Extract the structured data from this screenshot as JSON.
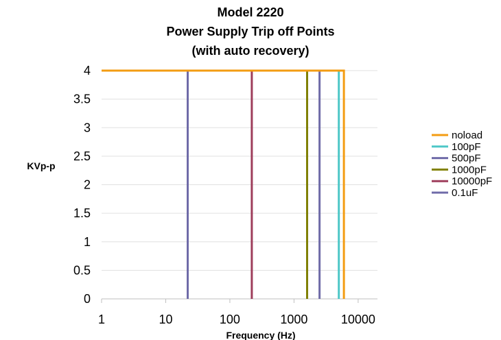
{
  "chart_data": {
    "type": "line",
    "title": [
      "Model 2220",
      "Power Supply Trip off Points",
      "(with auto recovery)"
    ],
    "xlabel": "Frequency (Hz)",
    "ylabel": "KVp-p",
    "x_scale": "log",
    "xlim": [
      1,
      20000
    ],
    "ylim": [
      0,
      4
    ],
    "x_ticks": [
      1,
      10,
      100,
      1000,
      10000
    ],
    "x_tick_labels": [
      "1",
      "10",
      "100",
      "1000",
      "10000"
    ],
    "y_ticks": [
      0,
      0.5,
      1,
      1.5,
      2,
      2.5,
      3,
      3.5,
      4
    ],
    "y_tick_labels": [
      "0",
      "0.5",
      "1",
      "1.5",
      "2",
      "2.5",
      "3",
      "3.5",
      "4"
    ],
    "grid": "horizontal",
    "legend_position": "right",
    "series": [
      {
        "name": "noload",
        "color": "#F39C12",
        "x": [
          1,
          6000,
          6000
        ],
        "y": [
          4,
          4,
          0
        ]
      },
      {
        "name": "100pF",
        "color": "#4DC7C7",
        "x": [
          5000,
          5000
        ],
        "y": [
          4,
          0
        ]
      },
      {
        "name": "500pF",
        "color": "#6F6BA8",
        "x": [
          2500,
          2500
        ],
        "y": [
          4,
          0
        ]
      },
      {
        "name": "1000pF",
        "color": "#808000",
        "x": [
          1600,
          1600
        ],
        "y": [
          4,
          0
        ]
      },
      {
        "name": "10000pF",
        "color": "#9E3D5B",
        "x": [
          220,
          220
        ],
        "y": [
          4,
          0
        ]
      },
      {
        "name": "0.1uF",
        "color": "#6F6BA8",
        "x": [
          22,
          22
        ],
        "y": [
          4,
          0
        ]
      }
    ]
  }
}
